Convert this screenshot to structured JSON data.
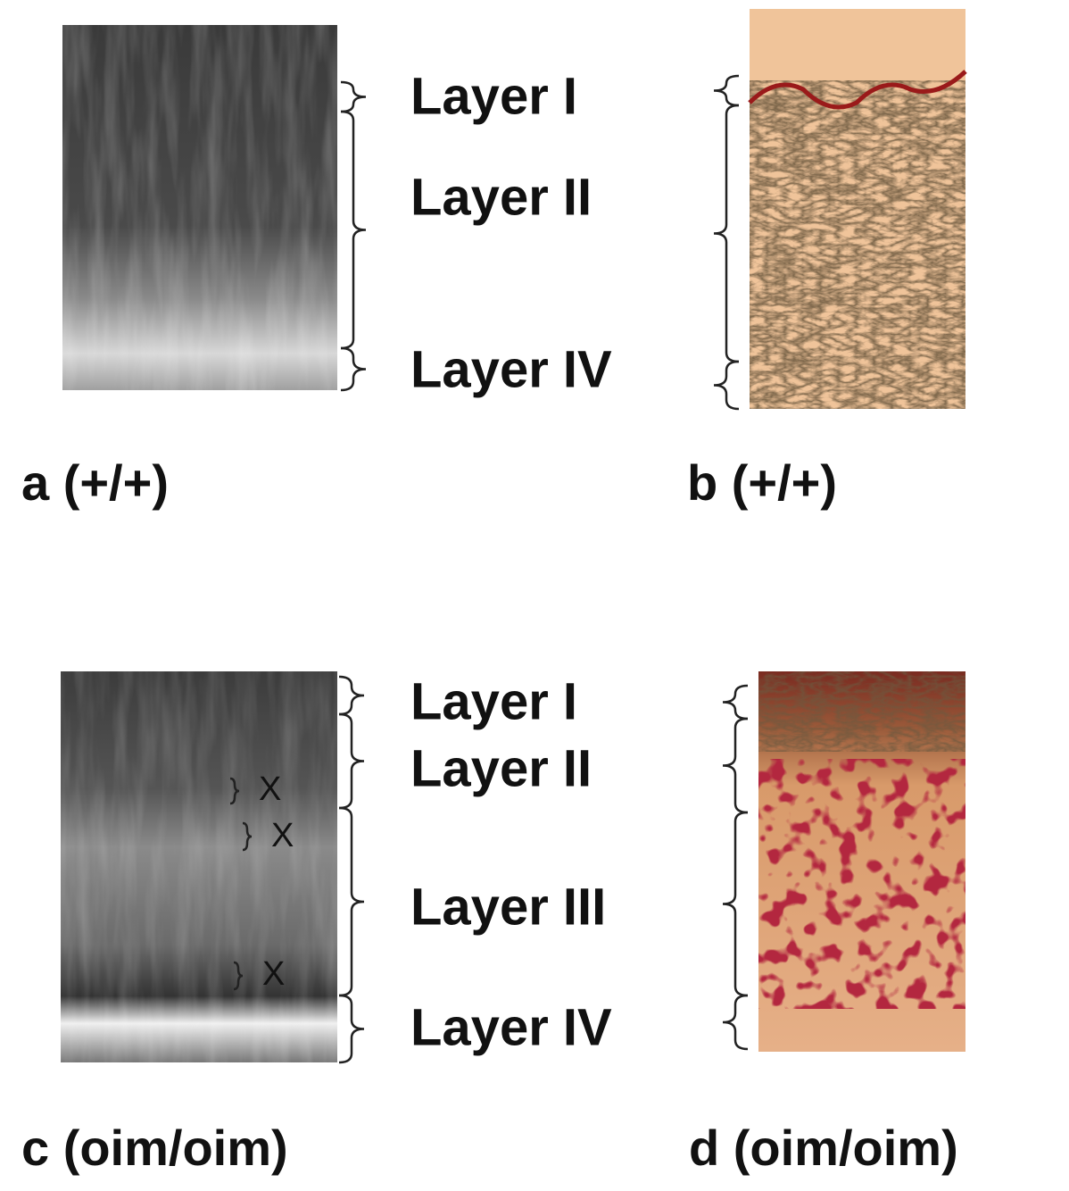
{
  "panels": [
    {
      "label": "a (+/+)"
    },
    {
      "label": "b (+/+)"
    },
    {
      "label": "c (oim/oim)"
    },
    {
      "label": "d (oim/oim)"
    }
  ],
  "layers_top": [
    "Layer I",
    "Layer II",
    "Layer IV"
  ],
  "layers_bottom": [
    "Layer I",
    "Layer II",
    "Layer III",
    "Layer IV"
  ],
  "markers": [
    "X",
    "X",
    "X"
  ]
}
